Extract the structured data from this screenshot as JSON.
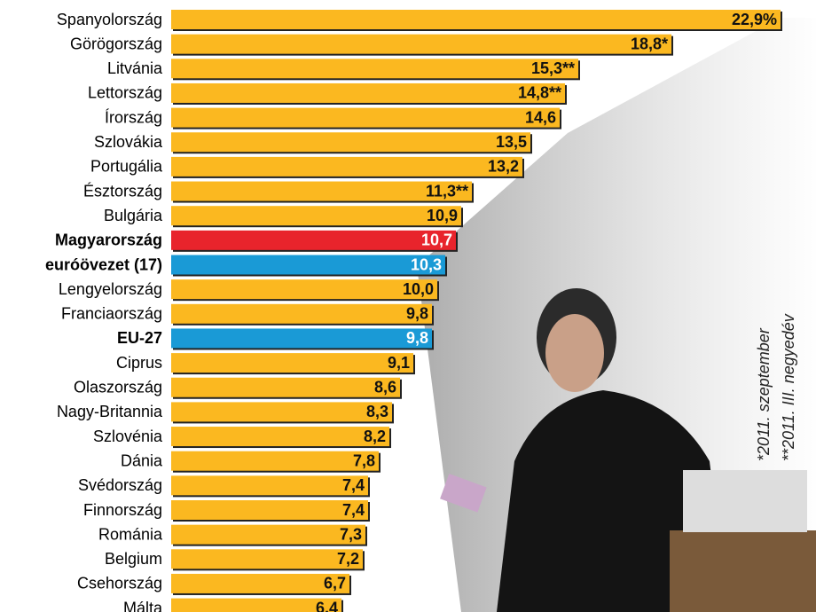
{
  "chart_data": {
    "type": "bar",
    "orientation": "horizontal",
    "categories": [
      "Spanyolország",
      "Görögország",
      "Litvánia",
      "Lettország",
      "Írország",
      "Szlovákia",
      "Portugália",
      "Észtország",
      "Bulgária",
      "Magyarország",
      "euróövezet (17)",
      "Lengyelország",
      "Franciaország",
      "EU-27",
      "Ciprus",
      "Olaszország",
      "Nagy-Britannia",
      "Szlovénia",
      "Dánia",
      "Svédország",
      "Finnország",
      "Románia",
      "Belgium",
      "Csehország",
      "Málta"
    ],
    "values": [
      22.9,
      18.8,
      15.3,
      14.8,
      14.6,
      13.5,
      13.2,
      11.3,
      10.9,
      10.7,
      10.3,
      10.0,
      9.8,
      9.8,
      9.1,
      8.6,
      8.3,
      8.2,
      7.8,
      7.4,
      7.4,
      7.3,
      7.2,
      6.7,
      6.4
    ],
    "value_labels": [
      "22,9%",
      "18,8*",
      "15,3**",
      "14,8**",
      "14,6",
      "13,5",
      "13,2",
      "11,3**",
      "10,9",
      "10,7",
      "10,3",
      "10,0",
      "9,8",
      "9,8",
      "9,1",
      "8,6",
      "8,3",
      "8,2",
      "7,8",
      "7,4",
      "7,4",
      "7,3",
      "7,2",
      "6,7",
      "6,4"
    ],
    "color": "#fbb820",
    "colors": [
      "#fbb820",
      "#fbb820",
      "#fbb820",
      "#fbb820",
      "#fbb820",
      "#fbb820",
      "#fbb820",
      "#fbb820",
      "#fbb820",
      "#e8242c",
      "#1a9ad6",
      "#fbb820",
      "#fbb820",
      "#1a9ad6",
      "#fbb820",
      "#fbb820",
      "#fbb820",
      "#fbb820",
      "#fbb820",
      "#fbb820",
      "#fbb820",
      "#fbb820",
      "#fbb820",
      "#fbb820",
      "#fbb820"
    ],
    "notes": [
      "*2011. szeptember",
      "**2011. III. negyedév"
    ]
  }
}
